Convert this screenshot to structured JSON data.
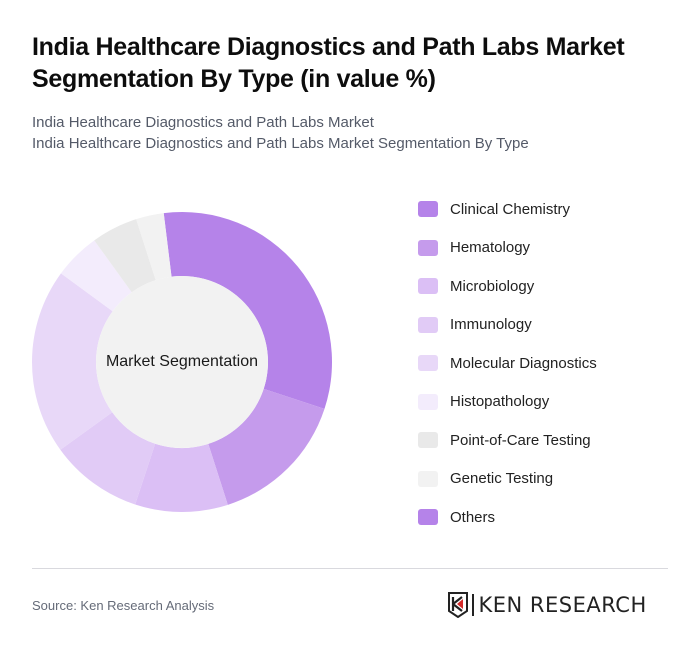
{
  "header": {
    "title": "India Healthcare Diagnostics and Path Labs Market Segmentation By Type (in value %)",
    "subtitle_line1": "India Healthcare Diagnostics and Path Labs Market",
    "subtitle_line2": "India Healthcare Diagnostics and Path Labs Market Segmentation By Type"
  },
  "chart": {
    "center_label": "Market Segmentation"
  },
  "legend": [
    {
      "label": "Clinical Chemistry",
      "color": "#b583e9"
    },
    {
      "label": "Hematology",
      "color": "#c59bec"
    },
    {
      "label": "Microbiology",
      "color": "#dbbff5"
    },
    {
      "label": "Immunology",
      "color": "#e1cbf6"
    },
    {
      "label": "Molecular Diagnostics",
      "color": "#e8d8f8"
    },
    {
      "label": "Histopathology",
      "color": "#f3ecfc"
    },
    {
      "label": "Point-of-Care Testing",
      "color": "#e9e9e9"
    },
    {
      "label": "Genetic Testing",
      "color": "#f2f2f2"
    },
    {
      "label": "Others",
      "color": "#b583e9"
    }
  ],
  "footer": {
    "source": "Source: Ken Research Analysis",
    "logo_text": "KEN RESEARCH"
  },
  "chart_data": {
    "type": "pie",
    "subtype": "donut",
    "title": "India Healthcare Diagnostics and Path Labs Market Segmentation By Type (in value %)",
    "center_label": "Market Segmentation",
    "categories": [
      "Clinical Chemistry",
      "Hematology",
      "Microbiology",
      "Immunology",
      "Molecular Diagnostics",
      "Histopathology",
      "Point-of-Care Testing",
      "Genetic Testing",
      "Others"
    ],
    "values": [
      32,
      15,
      10,
      10,
      20,
      5,
      5,
      3,
      0
    ],
    "colors": [
      "#b583e9",
      "#c59bec",
      "#dbbff5",
      "#e1cbf6",
      "#e8d8f8",
      "#f3ecfc",
      "#e9e9e9",
      "#f2f2f2",
      "#b583e9"
    ],
    "start_angle_deg": -7,
    "legend_position": "right",
    "unit": "%"
  }
}
